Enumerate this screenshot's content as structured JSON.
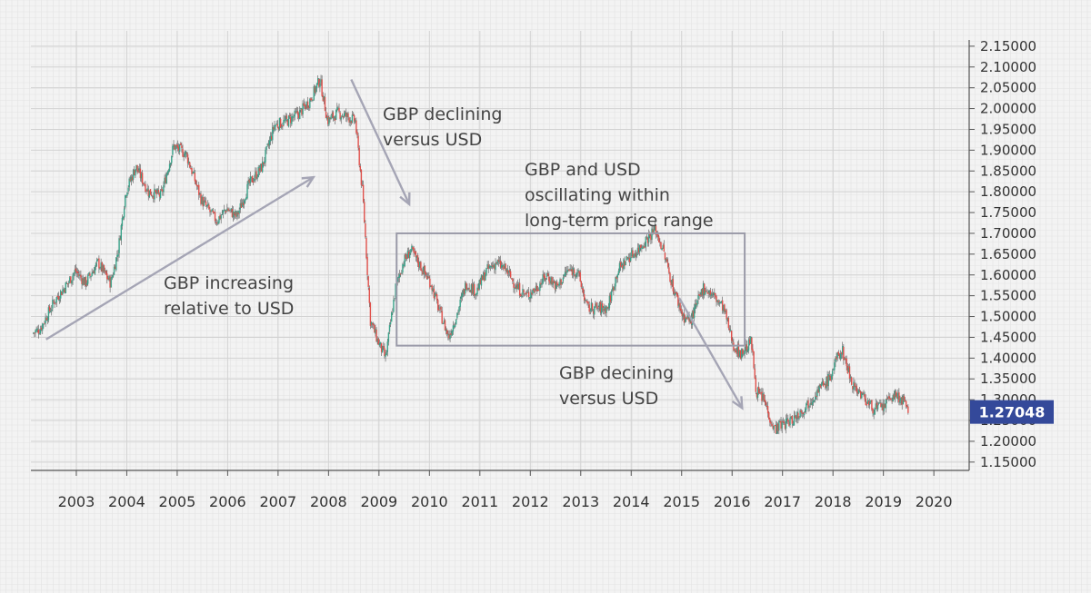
{
  "chart_data": {
    "type": "candlestick",
    "x_unit": "year",
    "xlim": [
      2002.1,
      2020.7
    ],
    "ylim": [
      1.13,
      2.165
    ],
    "x_ticks": [
      "2003",
      "2004",
      "2005",
      "2006",
      "2007",
      "2008",
      "2009",
      "2010",
      "2011",
      "2012",
      "2013",
      "2014",
      "2015",
      "2016",
      "2017",
      "2018",
      "2019",
      "2020"
    ],
    "y_ticks": [
      "1.15000",
      "1.20000",
      "1.25000",
      "1.30000",
      "1.35000",
      "1.40000",
      "1.45000",
      "1.50000",
      "1.55000",
      "1.60000",
      "1.65000",
      "1.70000",
      "1.75000",
      "1.80000",
      "1.85000",
      "1.90000",
      "1.95000",
      "2.00000",
      "2.05000",
      "2.10000",
      "2.15000"
    ],
    "y_axis_position": "right",
    "grid": true,
    "up_color": "#3aa38a",
    "down_color": "#e0504b",
    "current_price_label": "1.27048",
    "current_price": 1.2705,
    "badge_color": "#34499a",
    "price_path": [
      [
        2002.15,
        1.46
      ],
      [
        2002.3,
        1.47
      ],
      [
        2002.6,
        1.54
      ],
      [
        2002.85,
        1.58
      ],
      [
        2003.0,
        1.61
      ],
      [
        2003.2,
        1.58
      ],
      [
        2003.45,
        1.63
      ],
      [
        2003.7,
        1.58
      ],
      [
        2003.85,
        1.66
      ],
      [
        2004.0,
        1.8
      ],
      [
        2004.2,
        1.86
      ],
      [
        2004.45,
        1.8
      ],
      [
        2004.7,
        1.79
      ],
      [
        2004.95,
        1.91
      ],
      [
        2005.2,
        1.89
      ],
      [
        2005.5,
        1.78
      ],
      [
        2005.8,
        1.73
      ],
      [
        2006.0,
        1.76
      ],
      [
        2006.2,
        1.74
      ],
      [
        2006.45,
        1.82
      ],
      [
        2006.7,
        1.86
      ],
      [
        2006.95,
        1.96
      ],
      [
        2007.2,
        1.97
      ],
      [
        2007.45,
        1.99
      ],
      [
        2007.65,
        2.02
      ],
      [
        2007.85,
        2.07
      ],
      [
        2008.0,
        1.97
      ],
      [
        2008.2,
        1.99
      ],
      [
        2008.4,
        1.98
      ],
      [
        2008.55,
        1.97
      ],
      [
        2008.7,
        1.79
      ],
      [
        2008.85,
        1.49
      ],
      [
        2009.0,
        1.44
      ],
      [
        2009.15,
        1.4
      ],
      [
        2009.35,
        1.57
      ],
      [
        2009.5,
        1.63
      ],
      [
        2009.65,
        1.66
      ],
      [
        2009.85,
        1.62
      ],
      [
        2010.05,
        1.58
      ],
      [
        2010.2,
        1.52
      ],
      [
        2010.4,
        1.45
      ],
      [
        2010.55,
        1.5
      ],
      [
        2010.75,
        1.58
      ],
      [
        2010.95,
        1.56
      ],
      [
        2011.15,
        1.61
      ],
      [
        2011.35,
        1.63
      ],
      [
        2011.55,
        1.61
      ],
      [
        2011.75,
        1.57
      ],
      [
        2011.95,
        1.55
      ],
      [
        2012.15,
        1.57
      ],
      [
        2012.35,
        1.6
      ],
      [
        2012.55,
        1.57
      ],
      [
        2012.75,
        1.61
      ],
      [
        2012.95,
        1.61
      ],
      [
        2013.15,
        1.52
      ],
      [
        2013.35,
        1.52
      ],
      [
        2013.55,
        1.52
      ],
      [
        2013.75,
        1.61
      ],
      [
        2013.95,
        1.64
      ],
      [
        2014.15,
        1.66
      ],
      [
        2014.35,
        1.69
      ],
      [
        2014.5,
        1.71
      ],
      [
        2014.65,
        1.66
      ],
      [
        2014.85,
        1.57
      ],
      [
        2015.05,
        1.5
      ],
      [
        2015.2,
        1.49
      ],
      [
        2015.45,
        1.57
      ],
      [
        2015.65,
        1.55
      ],
      [
        2015.85,
        1.52
      ],
      [
        2016.05,
        1.43
      ],
      [
        2016.2,
        1.41
      ],
      [
        2016.4,
        1.44
      ],
      [
        2016.5,
        1.32
      ],
      [
        2016.65,
        1.3
      ],
      [
        2016.85,
        1.23
      ],
      [
        2017.0,
        1.24
      ],
      [
        2017.2,
        1.25
      ],
      [
        2017.45,
        1.28
      ],
      [
        2017.7,
        1.32
      ],
      [
        2017.95,
        1.35
      ],
      [
        2018.1,
        1.4
      ],
      [
        2018.2,
        1.42
      ],
      [
        2018.4,
        1.34
      ],
      [
        2018.6,
        1.31
      ],
      [
        2018.8,
        1.28
      ],
      [
        2019.0,
        1.28
      ],
      [
        2019.2,
        1.31
      ],
      [
        2019.4,
        1.3
      ],
      [
        2019.5,
        1.27
      ]
    ],
    "annotations": [
      {
        "text": "GBP increasing relative to USD",
        "lines": [
          "GBP increasing",
          "relative to USD"
        ]
      },
      {
        "text": "GBP declining versus USD",
        "lines": [
          "GBP declining",
          "versus USD"
        ]
      },
      {
        "text": "GBP and USD oscillating within long-term price range",
        "lines": [
          "GBP and USD",
          "oscillating within",
          "long-term price range"
        ]
      },
      {
        "text": "GBP decining versus USD",
        "lines": [
          "GBP decining",
          "versus USD"
        ]
      }
    ],
    "range_box": {
      "x0": 2009.35,
      "x1": 2016.25,
      "y0": 1.43,
      "y1": 1.7
    },
    "arrows": [
      {
        "from": [
          2002.4,
          1.445
        ],
        "to": [
          2007.7,
          1.835
        ]
      },
      {
        "from": [
          2008.45,
          2.07
        ],
        "to": [
          2009.6,
          1.77
        ]
      },
      {
        "from": [
          2014.95,
          1.545
        ],
        "to": [
          2016.2,
          1.28
        ]
      }
    ]
  }
}
